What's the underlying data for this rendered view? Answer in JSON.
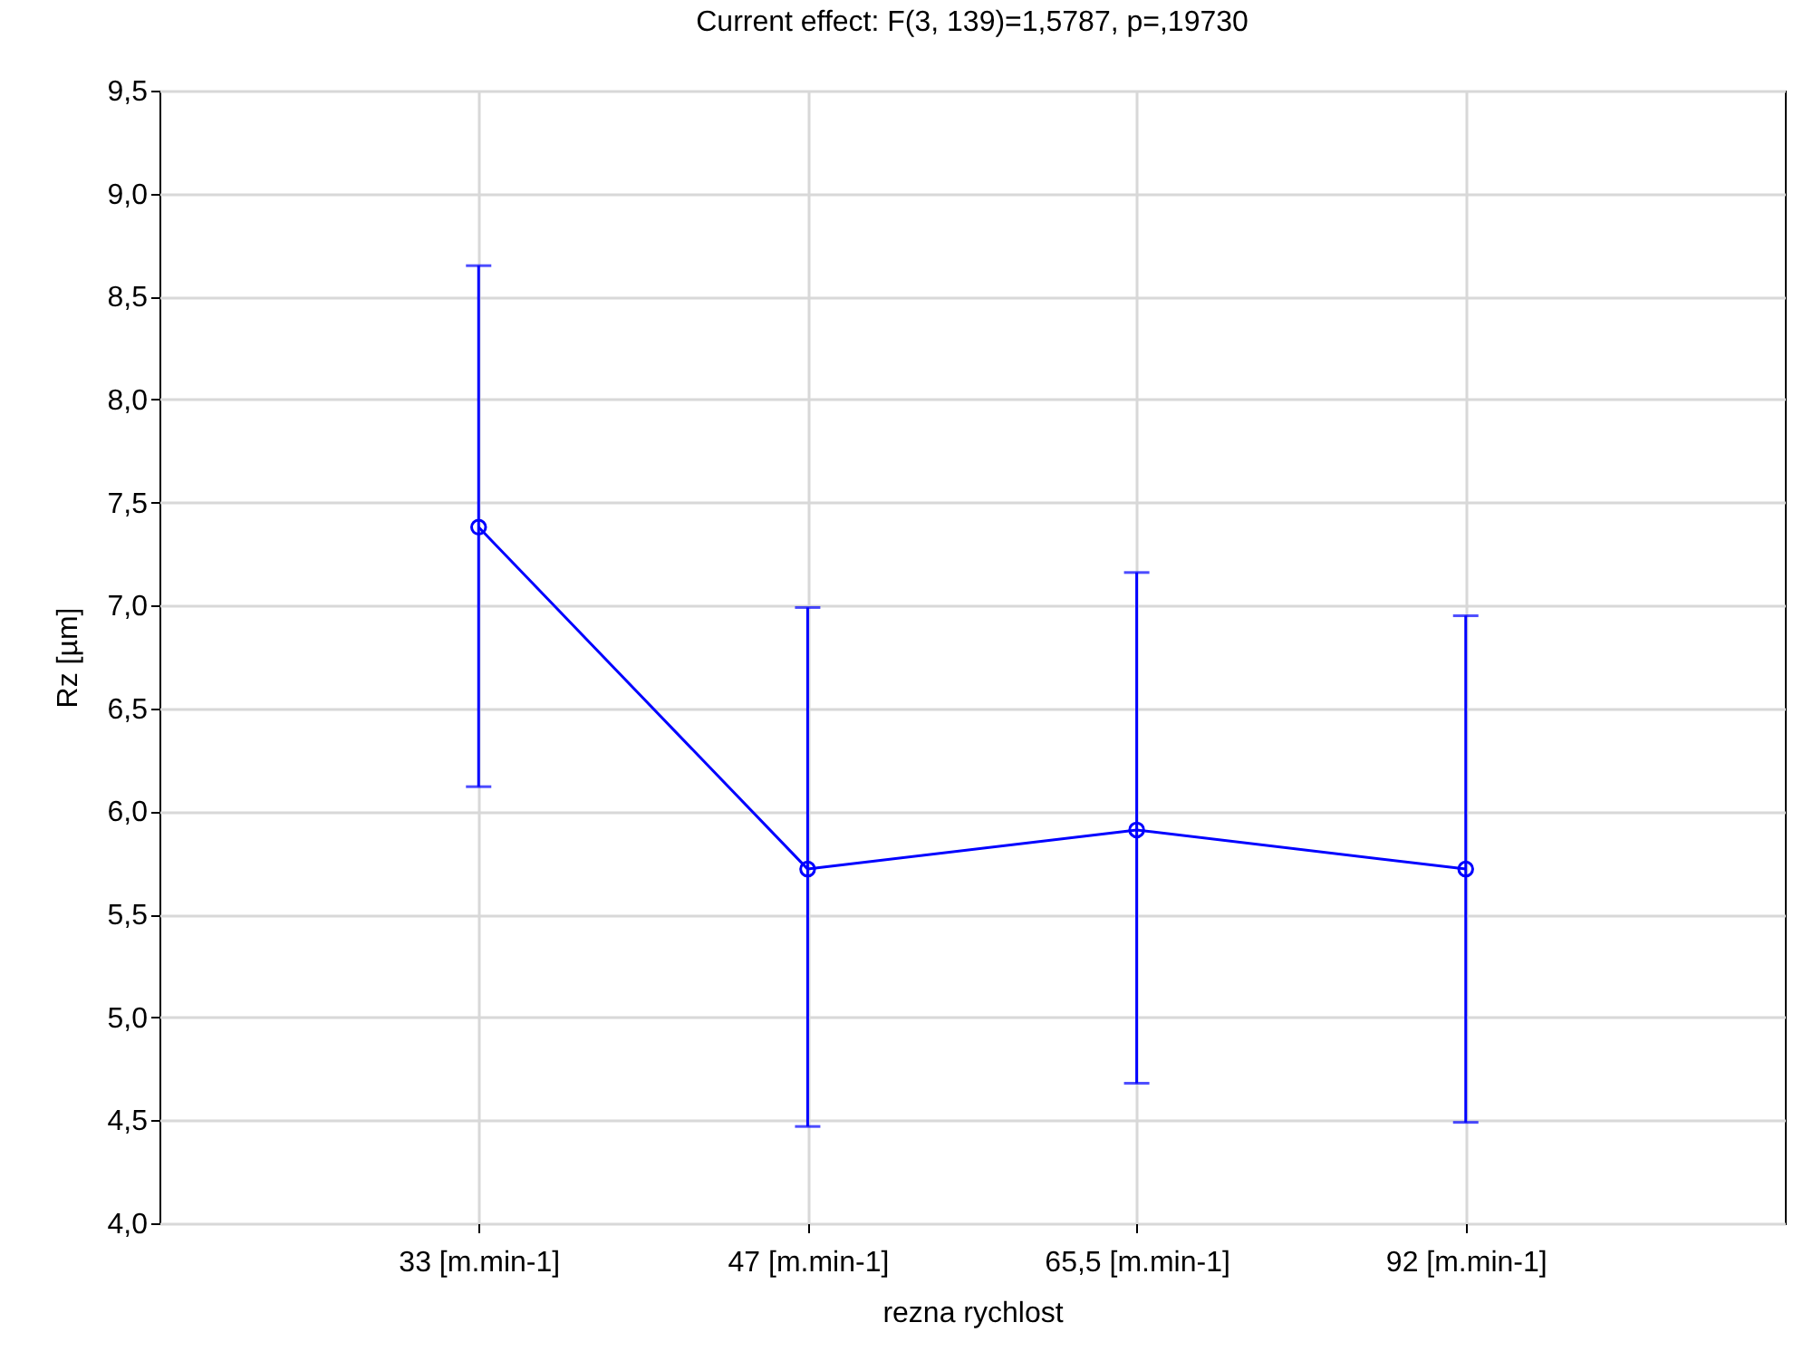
{
  "chart_data": {
    "type": "line",
    "title": "Current effect: F(3, 139)=1,5787, p=,19730",
    "xlabel": "rezna rychlost",
    "ylabel": "Rz [µm]",
    "categories": [
      "33 [m.min-1]",
      "47 [m.min-1]",
      "65,5 [m.min-1]",
      "92 [m.min-1]"
    ],
    "series": [
      {
        "color": "#0000ff",
        "values": [
          7.38,
          5.72,
          5.91,
          5.72
        ],
        "errors": [
          [
            6.12,
            8.65
          ],
          [
            4.47,
            6.99
          ],
          [
            4.68,
            7.16
          ],
          [
            4.49,
            6.95
          ]
        ]
      }
    ],
    "ylim": [
      4.0,
      9.5
    ],
    "yticks": [
      {
        "value": 4.0,
        "label": "4,0"
      },
      {
        "value": 4.5,
        "label": "4,5"
      },
      {
        "value": 5.0,
        "label": "5,0"
      },
      {
        "value": 5.5,
        "label": "5,5"
      },
      {
        "value": 6.0,
        "label": "6,0"
      },
      {
        "value": 6.5,
        "label": "6,5"
      },
      {
        "value": 7.0,
        "label": "7,0"
      },
      {
        "value": 7.5,
        "label": "7,5"
      },
      {
        "value": 8.0,
        "label": "8,0"
      },
      {
        "value": 8.5,
        "label": "8,5"
      },
      {
        "value": 9.0,
        "label": "9,0"
      },
      {
        "value": 9.5,
        "label": "9,5"
      }
    ],
    "grid": true,
    "marker": "circle",
    "line_style": "solid"
  }
}
